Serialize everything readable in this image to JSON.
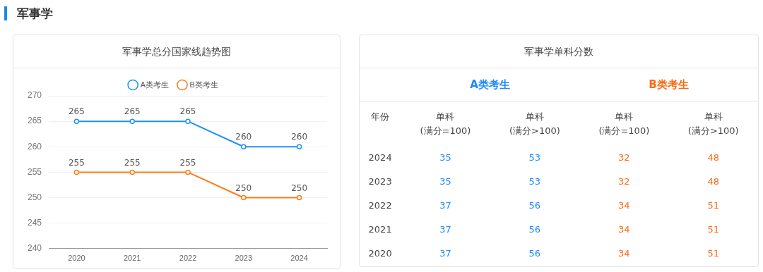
{
  "chart_data": [
    {
      "type": "line",
      "title": "军事学总分国家线趋势图",
      "annotations": [
        "军事学"
      ],
      "categories": [
        "2020",
        "2021",
        "2022",
        "2023",
        "2024"
      ],
      "series": [
        {
          "name": "A类考生",
          "color": "#1e90ff",
          "values": [
            265,
            265,
            265,
            260,
            260
          ]
        },
        {
          "name": "B类考生",
          "color": "#ff7a1a",
          "values": [
            255,
            255,
            255,
            250,
            250
          ]
        }
      ],
      "ylim": [
        240,
        270
      ],
      "yticks": [
        240,
        245,
        250,
        255,
        260,
        265,
        270
      ],
      "grid": "y",
      "legend": "top",
      "marker": "circle",
      "line_style": "solid",
      "data_labels": true
    },
    {
      "type": "heatmap",
      "title": "军事学单科分数",
      "ylabel": "年份",
      "data_labels": true,
      "annotations": [
        "A类考生",
        "B类考生"
      ],
      "colors": [
        "#1e88ff",
        "#1e88ff",
        "#ff6a13",
        "#ff6a13"
      ],
      "categories": [
        "单科\n(满分=100)",
        "单科\n(满分>100)",
        "单科\n(满分=100)",
        "单科\n(满分>100)"
      ],
      "y_categories": [
        "2024",
        "2023",
        "2022",
        "2021",
        "2020"
      ],
      "cells": [
        [
          35,
          53,
          32,
          48
        ],
        [
          35,
          53,
          32,
          48
        ],
        [
          37,
          56,
          34,
          51
        ],
        [
          37,
          56,
          34,
          51
        ],
        [
          37,
          56,
          34,
          51
        ]
      ]
    }
  ]
}
